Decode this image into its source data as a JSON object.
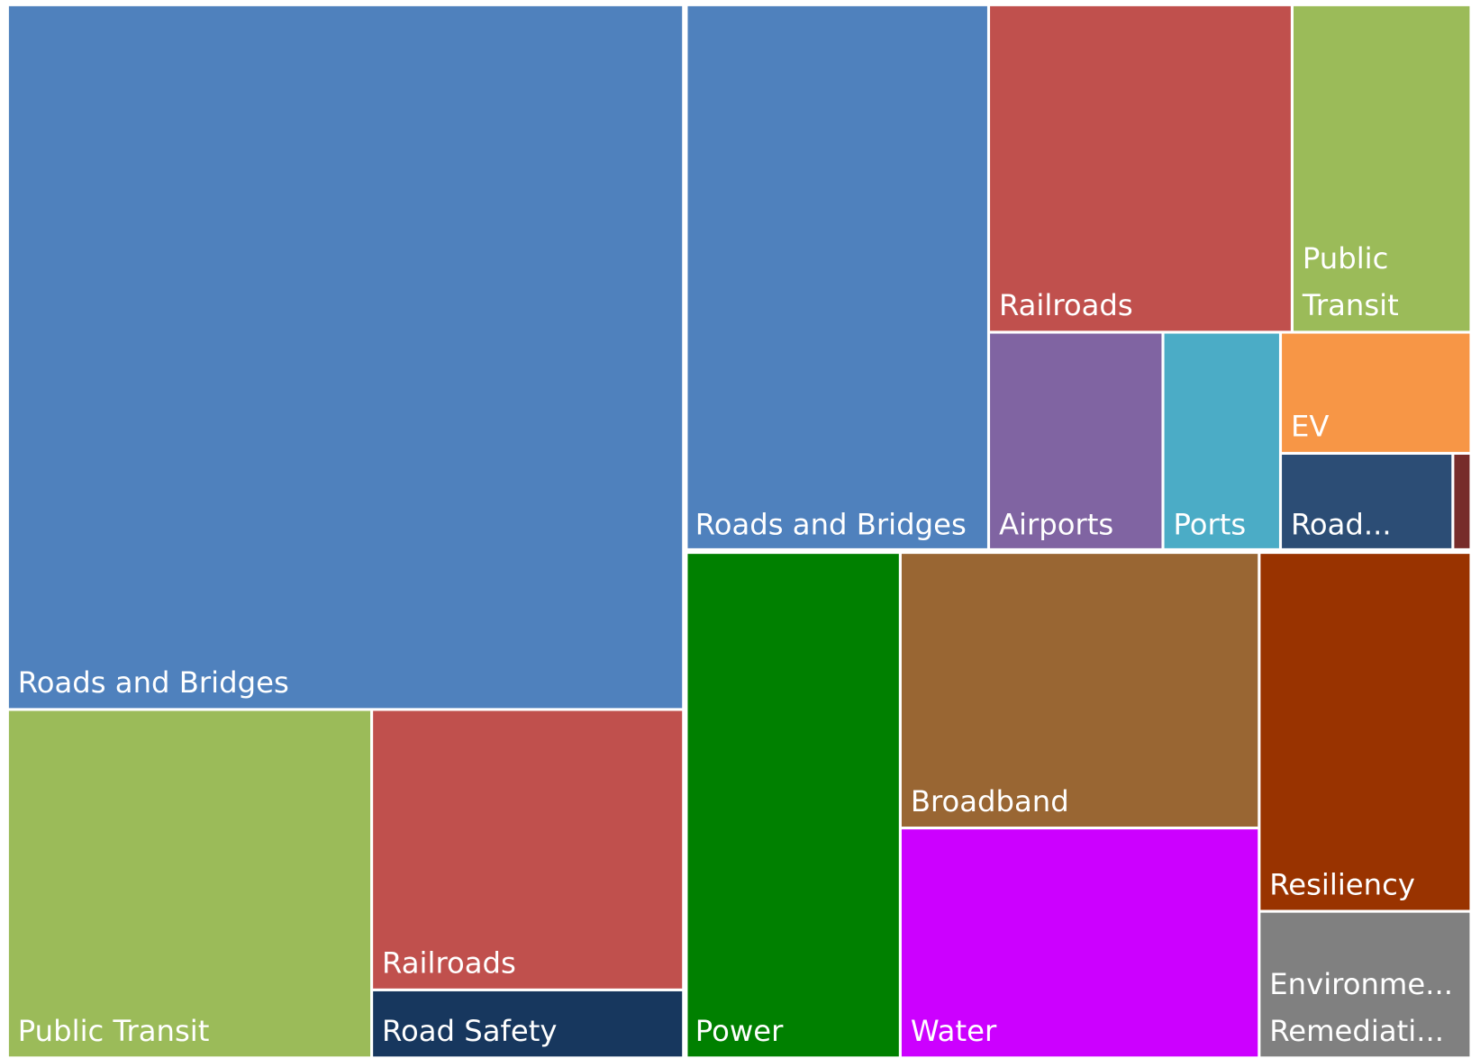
{
  "chart_data": {
    "type": "treemap",
    "groups": [
      {
        "categories": [
          "Roads and Bridges",
          "Public Transit",
          "Railroads",
          "Road Safety"
        ],
        "values": [
          538,
          143,
          99,
          24
        ],
        "colors": [
          "#4f81bd",
          "#9bbb59",
          "#c0504d",
          "#17375e"
        ]
      },
      {
        "categories": [
          "Roads and Bridges",
          "Railroads",
          "Public Transit",
          "Airports",
          "Ports",
          "EV",
          "Road...",
          null
        ],
        "values": [
          187,
          112,
          66,
          43,
          29,
          26,
          19,
          2
        ],
        "colors": [
          "#4f81bd",
          "#c0504d",
          "#9bbb59",
          "#8064a2",
          "#4bacc6",
          "#f79646",
          "#2c4d75",
          "#772c2a"
        ]
      },
      {
        "categories": [
          "Power",
          "Broadband",
          "Water",
          "Resiliency",
          "Environme... Remediati..."
        ],
        "values": [
          123,
          112,
          93,
          86,
          35
        ],
        "colors": [
          "#008000",
          "#996633",
          "#cc00ff",
          "#993300",
          "#808080"
        ]
      }
    ]
  }
}
